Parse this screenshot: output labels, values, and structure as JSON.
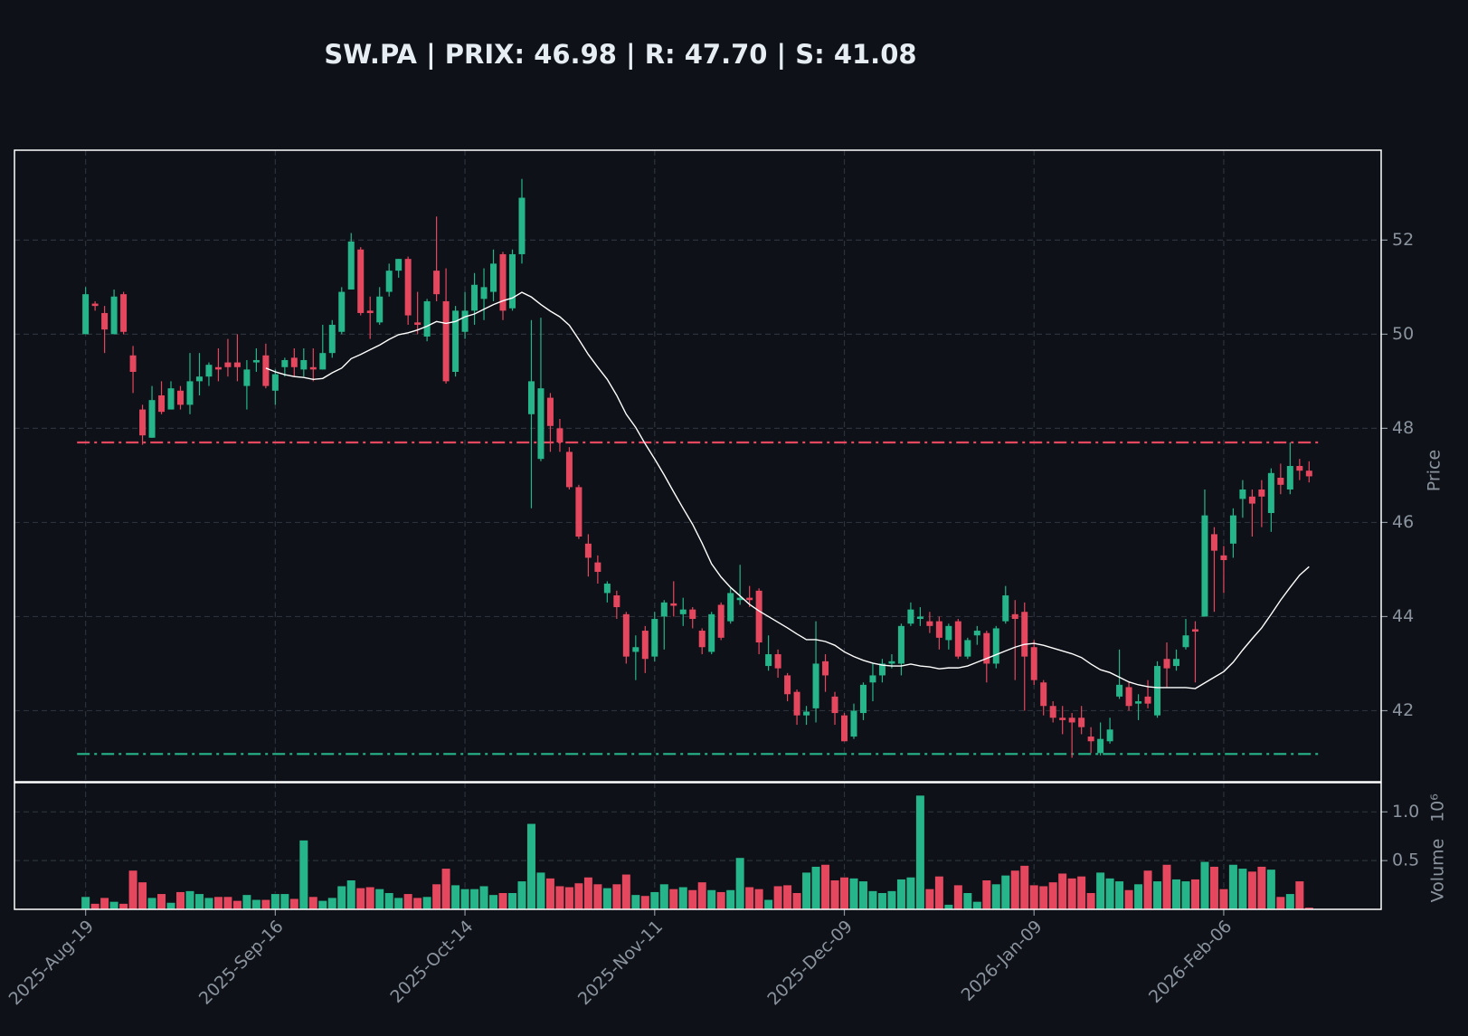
{
  "chart_data": {
    "type": "candlestick",
    "title": "SW.PA | PRIX: 46.98 | R: 47.70 | S: 41.08",
    "ylabel": "Price",
    "grid": true,
    "up_color": "#26b58a",
    "down_color": "#e5475f",
    "categories": [
      "2025-Aug-19",
      null,
      null,
      null,
      null,
      null,
      null,
      null,
      null,
      null,
      null,
      null,
      null,
      null,
      null,
      null,
      null,
      null,
      null,
      null,
      "2025-Sep-16",
      null,
      null,
      null,
      null,
      null,
      null,
      null,
      null,
      null,
      null,
      null,
      null,
      null,
      null,
      null,
      null,
      null,
      null,
      null,
      "2025-Oct-14",
      null,
      null,
      null,
      null,
      null,
      null,
      null,
      null,
      null,
      null,
      null,
      null,
      null,
      null,
      null,
      null,
      null,
      null,
      null,
      "2025-Nov-11",
      null,
      null,
      null,
      null,
      null,
      null,
      null,
      null,
      null,
      null,
      null,
      null,
      null,
      null,
      null,
      null,
      null,
      null,
      null,
      "2025-Dec-09",
      null,
      null,
      null,
      null,
      null,
      null,
      null,
      null,
      null,
      null,
      null,
      null,
      null,
      null,
      null,
      null,
      null,
      null,
      null,
      "2026-Jan-09",
      null,
      null,
      null,
      null,
      null,
      null,
      null,
      null,
      null,
      null,
      null,
      null,
      null,
      null,
      null,
      null,
      null,
      null,
      null,
      "2026-Feb-06",
      null,
      null,
      null,
      null,
      null,
      null,
      null,
      null,
      null
    ],
    "xlim": [
      -7.5,
      136.6
    ],
    "open": [
      50.0,
      50.65,
      50.45,
      50.0,
      50.85,
      49.55,
      48.4,
      47.8,
      48.7,
      48.4,
      48.8,
      48.5,
      49.0,
      49.1,
      49.3,
      49.4,
      49.4,
      48.9,
      49.4,
      49.55,
      48.8,
      49.3,
      49.5,
      49.25,
      49.3,
      49.25,
      49.6,
      50.05,
      50.95,
      51.8,
      50.5,
      50.25,
      50.9,
      51.35,
      51.6,
      50.25,
      49.95,
      51.35,
      50.7,
      49.2,
      50.05,
      50.5,
      50.75,
      50.9,
      51.7,
      50.55,
      51.7,
      48.3,
      47.35,
      48.65,
      48.0,
      47.5,
      46.75,
      45.55,
      45.15,
      44.5,
      44.45,
      44.05,
      43.25,
      43.7,
      43.15,
      44.0,
      44.28,
      44.05,
      44.15,
      43.7,
      43.25,
      44.25,
      43.9,
      44.35,
      44.4,
      44.55,
      42.95,
      43.2,
      42.75,
      42.4,
      41.9,
      42.05,
      43.05,
      42.3,
      41.9,
      41.45,
      41.95,
      42.6,
      42.75,
      43.0,
      43.0,
      43.85,
      43.95,
      43.9,
      43.9,
      43.5,
      43.9,
      43.15,
      43.6,
      43.65,
      43.0,
      43.9,
      44.05,
      44.1,
      43.35,
      42.6,
      42.1,
      41.85,
      41.85,
      41.85,
      41.45,
      41.1,
      41.35,
      42.3,
      42.5,
      42.15,
      42.3,
      41.9,
      43.1,
      42.95,
      43.35,
      43.73,
      44.0,
      45.75,
      45.3,
      45.55,
      46.5,
      46.55,
      46.7,
      46.2,
      46.95,
      46.7,
      47.2,
      47.1
    ],
    "high": [
      51.0,
      50.7,
      50.6,
      50.95,
      50.9,
      49.75,
      48.5,
      48.9,
      49.0,
      49.0,
      48.9,
      49.6,
      49.6,
      49.4,
      49.7,
      49.9,
      50.0,
      49.45,
      49.7,
      49.8,
      49.25,
      49.5,
      49.7,
      49.7,
      49.7,
      50.2,
      50.3,
      51.0,
      52.15,
      51.85,
      50.8,
      51.0,
      51.5,
      51.6,
      51.65,
      50.9,
      50.75,
      52.5,
      51.4,
      50.6,
      50.9,
      51.3,
      51.4,
      51.8,
      51.75,
      51.8,
      53.3,
      50.3,
      50.35,
      48.75,
      48.2,
      47.6,
      46.8,
      45.75,
      45.3,
      44.75,
      44.55,
      44.1,
      43.6,
      43.8,
      44.1,
      44.35,
      44.75,
      44.4,
      44.2,
      43.75,
      44.1,
      44.3,
      44.6,
      45.1,
      44.65,
      44.6,
      43.6,
      43.3,
      42.8,
      42.45,
      42.1,
      43.9,
      43.2,
      42.4,
      41.95,
      42.15,
      42.6,
      43.0,
      43.1,
      43.2,
      43.85,
      44.3,
      44.2,
      44.1,
      44.0,
      43.85,
      43.95,
      43.55,
      43.8,
      43.7,
      43.8,
      44.65,
      44.35,
      44.3,
      43.5,
      42.65,
      42.2,
      42.1,
      41.95,
      42.1,
      41.65,
      41.75,
      41.85,
      43.3,
      42.6,
      42.35,
      42.65,
      43.05,
      43.45,
      43.3,
      43.95,
      43.9,
      46.7,
      45.9,
      45.5,
      46.3,
      46.9,
      46.7,
      46.9,
      47.15,
      47.25,
      47.7,
      47.35,
      47.3
    ],
    "low": [
      50.0,
      50.5,
      49.6,
      50.0,
      50.0,
      48.75,
      47.65,
      47.8,
      48.3,
      48.4,
      48.4,
      48.3,
      48.7,
      48.9,
      49.0,
      49.1,
      49.0,
      48.4,
      49.2,
      48.85,
      48.5,
      49.1,
      49.1,
      49.1,
      49.0,
      49.25,
      49.5,
      50.0,
      50.95,
      50.4,
      49.9,
      50.2,
      50.8,
      51.2,
      50.2,
      50.0,
      49.85,
      50.7,
      48.95,
      49.1,
      49.9,
      50.2,
      50.3,
      50.7,
      50.3,
      50.5,
      51.5,
      46.3,
      47.3,
      47.5,
      47.5,
      46.7,
      45.65,
      44.85,
      44.7,
      44.3,
      43.95,
      43.0,
      42.65,
      42.8,
      43.05,
      43.3,
      44.0,
      43.8,
      43.75,
      43.2,
      43.2,
      43.5,
      43.85,
      44.25,
      44.2,
      43.2,
      42.85,
      42.7,
      42.2,
      41.7,
      41.7,
      41.75,
      42.4,
      41.7,
      41.35,
      41.4,
      41.8,
      42.2,
      42.6,
      42.9,
      42.75,
      43.8,
      43.8,
      43.65,
      43.3,
      43.3,
      43.1,
      43.1,
      43.4,
      42.6,
      42.9,
      43.85,
      42.65,
      42.0,
      42.55,
      41.9,
      41.75,
      41.5,
      41.0,
      41.5,
      41.1,
      41.05,
      41.3,
      42.25,
      42.0,
      41.8,
      42.05,
      41.85,
      42.5,
      42.85,
      43.3,
      42.6,
      44.0,
      44.1,
      44.5,
      45.25,
      46.1,
      45.7,
      45.9,
      45.8,
      46.6,
      46.6,
      46.9,
      46.85
    ],
    "close": [
      50.85,
      50.6,
      50.1,
      50.8,
      50.05,
      49.2,
      47.85,
      48.6,
      48.35,
      48.85,
      48.5,
      49.0,
      49.1,
      49.35,
      49.25,
      49.3,
      49.3,
      49.25,
      49.45,
      48.9,
      49.15,
      49.45,
      49.3,
      49.45,
      49.25,
      49.6,
      50.2,
      50.9,
      51.97,
      50.45,
      50.45,
      50.8,
      51.35,
      51.6,
      50.4,
      50.2,
      50.7,
      50.85,
      49.0,
      50.5,
      50.5,
      51.05,
      51.0,
      51.5,
      50.5,
      51.7,
      52.9,
      49.0,
      48.85,
      48.05,
      47.7,
      46.75,
      45.7,
      45.25,
      44.95,
      44.7,
      44.2,
      43.15,
      43.35,
      43.1,
      43.95,
      44.3,
      44.23,
      44.15,
      43.95,
      43.35,
      44.05,
      43.55,
      44.5,
      44.4,
      44.35,
      43.45,
      43.2,
      42.9,
      42.35,
      41.9,
      41.98,
      43.0,
      42.75,
      41.95,
      41.35,
      42.0,
      42.55,
      42.75,
      43.0,
      43.05,
      43.8,
      44.15,
      44.0,
      43.8,
      43.55,
      43.8,
      43.15,
      43.5,
      43.7,
      43.0,
      43.75,
      44.45,
      43.95,
      43.15,
      42.65,
      42.1,
      41.85,
      41.8,
      41.75,
      41.65,
      41.35,
      41.4,
      41.6,
      42.55,
      42.1,
      42.2,
      42.15,
      42.95,
      42.9,
      43.1,
      43.6,
      43.68,
      46.15,
      45.4,
      45.2,
      46.15,
      46.7,
      46.4,
      46.55,
      47.05,
      46.8,
      47.2,
      47.1,
      46.98
    ],
    "ma": {
      "color": "#ffffff",
      "values": [
        null,
        null,
        null,
        null,
        null,
        null,
        null,
        null,
        null,
        null,
        null,
        null,
        null,
        null,
        null,
        null,
        null,
        null,
        null,
        49.28,
        49.2,
        49.14,
        49.1,
        49.08,
        49.04,
        49.06,
        49.18,
        49.28,
        49.48,
        49.57,
        49.67,
        49.77,
        49.89,
        49.99,
        50.03,
        50.09,
        50.17,
        50.27,
        50.23,
        50.27,
        50.37,
        50.43,
        50.53,
        50.63,
        50.71,
        50.77,
        50.89,
        50.79,
        50.63,
        50.49,
        50.37,
        50.19,
        49.89,
        49.57,
        49.3,
        49.04,
        48.7,
        48.3,
        48.02,
        47.67,
        47.35,
        47.01,
        46.65,
        46.3,
        45.96,
        45.56,
        45.12,
        44.84,
        44.62,
        44.44,
        44.26,
        44.12,
        44.0,
        43.88,
        43.76,
        43.63,
        43.51,
        43.51,
        43.47,
        43.39,
        43.25,
        43.15,
        43.07,
        43.01,
        42.97,
        42.95,
        42.95,
        42.99,
        42.95,
        42.93,
        42.89,
        42.91,
        42.91,
        42.95,
        43.03,
        43.11,
        43.19,
        43.27,
        43.35,
        43.41,
        43.43,
        43.39,
        43.33,
        43.27,
        43.21,
        43.13,
        42.99,
        42.87,
        42.81,
        42.71,
        42.61,
        42.55,
        42.51,
        42.49,
        42.49,
        42.49,
        42.49,
        42.47,
        42.59,
        42.71,
        42.83,
        43.03,
        43.29,
        43.53,
        43.76,
        44.05,
        44.35,
        44.62,
        44.88,
        45.06
      ]
    },
    "resistance": {
      "value": 47.7,
      "color": "#e5475f"
    },
    "support": {
      "value": 41.08,
      "color": "#26b58a"
    },
    "ylim": [
      40.49,
      53.91
    ],
    "yticks": [
      42,
      44,
      46,
      48,
      50,
      52
    ],
    "volume": {
      "ylabel": "Volume",
      "offset_label": "10⁶",
      "ylim": [
        0,
        1.3
      ],
      "yticks": [
        0.5,
        {
          "value": 1,
          "label": "1.0"
        }
      ],
      "values": [
        0.13,
        0.06,
        0.12,
        0.08,
        0.06,
        0.4,
        0.28,
        0.12,
        0.16,
        0.07,
        0.18,
        0.19,
        0.16,
        0.12,
        0.13,
        0.13,
        0.09,
        0.15,
        0.1,
        0.1,
        0.16,
        0.16,
        0.11,
        0.71,
        0.13,
        0.09,
        0.12,
        0.24,
        0.3,
        0.22,
        0.23,
        0.21,
        0.17,
        0.12,
        0.16,
        0.12,
        0.13,
        0.26,
        0.42,
        0.25,
        0.21,
        0.21,
        0.24,
        0.15,
        0.17,
        0.17,
        0.29,
        0.88,
        0.38,
        0.32,
        0.24,
        0.23,
        0.27,
        0.33,
        0.26,
        0.22,
        0.26,
        0.36,
        0.15,
        0.14,
        0.18,
        0.26,
        0.21,
        0.23,
        0.2,
        0.28,
        0.2,
        0.18,
        0.2,
        0.53,
        0.23,
        0.21,
        0.1,
        0.24,
        0.25,
        0.17,
        0.38,
        0.44,
        0.46,
        0.3,
        0.33,
        0.32,
        0.29,
        0.19,
        0.17,
        0.19,
        0.31,
        0.33,
        1.17,
        0.21,
        0.34,
        0.05,
        0.25,
        0.17,
        0.08,
        0.3,
        0.26,
        0.35,
        0.4,
        0.45,
        0.25,
        0.24,
        0.28,
        0.37,
        0.32,
        0.34,
        0.17,
        0.38,
        0.32,
        0.29,
        0.2,
        0.26,
        0.4,
        0.29,
        0.46,
        0.31,
        0.29,
        0.31,
        0.49,
        0.44,
        0.21,
        0.46,
        0.42,
        0.39,
        0.44,
        0.41,
        0.13,
        0.16,
        0.29,
        0.02
      ]
    }
  }
}
